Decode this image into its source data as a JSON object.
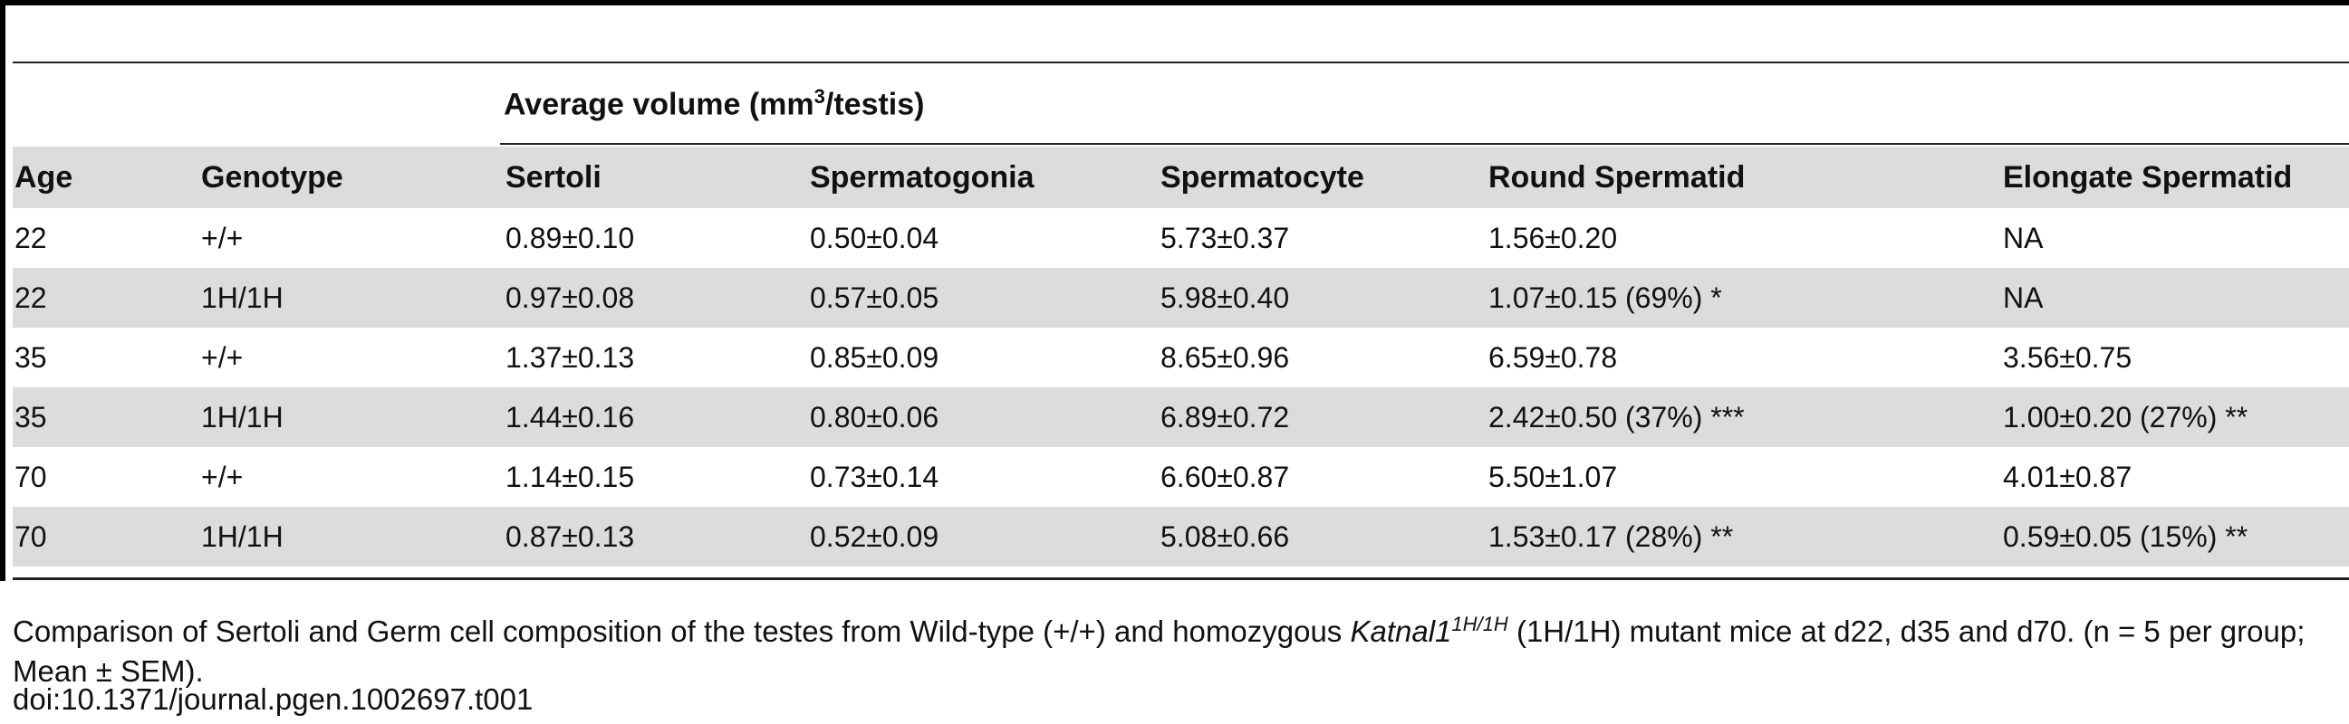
{
  "table": {
    "group_heading": {
      "prefix": "Average volume (mm",
      "superscript": "3",
      "suffix": "/testis)"
    },
    "columns": [
      "Age",
      "Genotype",
      "Sertoli",
      "Spermatogonia",
      "Spermatocyte",
      "Round Spermatid",
      "Elongate Spermatid"
    ],
    "rows": [
      [
        "22",
        "+/+",
        "0.89±0.10",
        "0.50±0.04",
        "5.73±0.37",
        "1.56±0.20",
        "NA"
      ],
      [
        "22",
        "1H/1H",
        "0.97±0.08",
        "0.57±0.05",
        "5.98±0.40",
        "1.07±0.15 (69%) *",
        "NA"
      ],
      [
        "35",
        "+/+",
        "1.37±0.13",
        "0.85±0.09",
        "8.65±0.96",
        "6.59±0.78",
        "3.56±0.75"
      ],
      [
        "35",
        "1H/1H",
        "1.44±0.16",
        "0.80±0.06",
        "6.89±0.72",
        "2.42±0.50 (37%) ***",
        "1.00±0.20 (27%) **"
      ],
      [
        "70",
        "+/+",
        "1.14±0.15",
        "0.73±0.14",
        "6.60±0.87",
        "5.50±1.07",
        "4.01±0.87"
      ],
      [
        "70",
        "1H/1H",
        "0.87±0.13",
        "0.52±0.09",
        "5.08±0.66",
        "1.53±0.17 (28%) **",
        "0.59±0.05 (15%) **"
      ]
    ]
  },
  "caption": {
    "part1": "Comparison of Sertoli and Germ cell composition of the testes from Wild-type (+/+) and homozygous ",
    "gene": "Katnal1",
    "gene_sup": "1H/1H",
    "part2": " (1H/1H) mutant mice at d22, d35 and d70. (n = 5 per group; Mean ± SEM).",
    "doi": "doi:10.1371/journal.pgen.1002697.t001"
  }
}
